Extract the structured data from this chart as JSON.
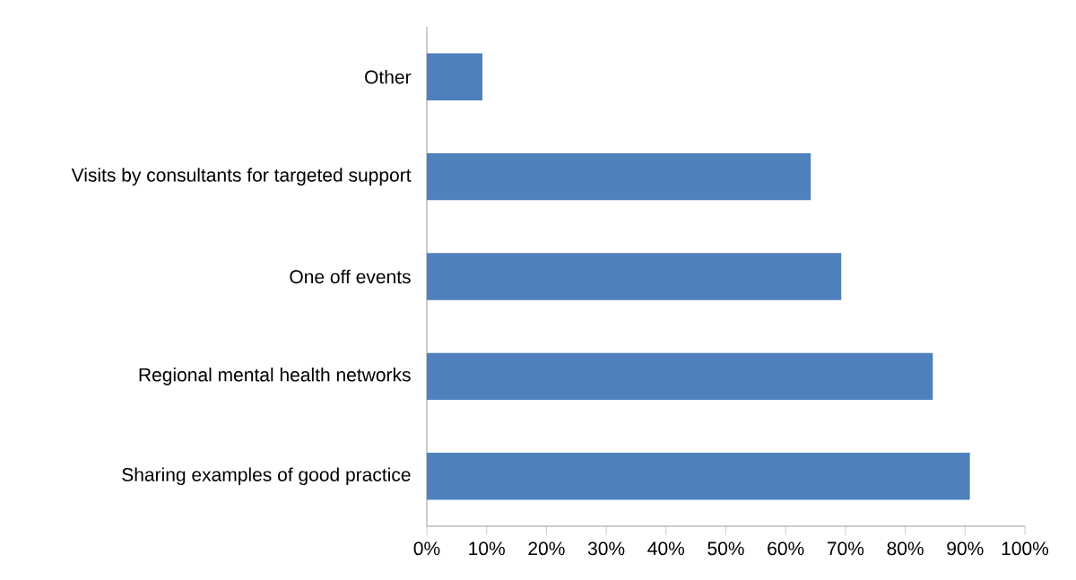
{
  "chart_data": {
    "type": "bar",
    "orientation": "horizontal",
    "categories": [
      "Other",
      "Visits by consultants for targeted support",
      "One off events",
      "Regional mental health networks",
      "Sharing examples of good practice"
    ],
    "values": [
      9.3,
      64.2,
      69.3,
      84.6,
      90.8
    ],
    "color": "#4f81bd",
    "xlim": [
      0,
      100
    ],
    "xticks": [
      {
        "value": 0,
        "label": "0%"
      },
      {
        "value": 10,
        "label": "10%"
      },
      {
        "value": 20,
        "label": "20%"
      },
      {
        "value": 30,
        "label": "30%"
      },
      {
        "value": 40,
        "label": "40%"
      },
      {
        "value": 50,
        "label": "50%"
      },
      {
        "value": 60,
        "label": "60%"
      },
      {
        "value": 70,
        "label": "70%"
      },
      {
        "value": 80,
        "label": "80%"
      },
      {
        "value": 90,
        "label": "90%"
      },
      {
        "value": 100,
        "label": "100%"
      }
    ]
  }
}
